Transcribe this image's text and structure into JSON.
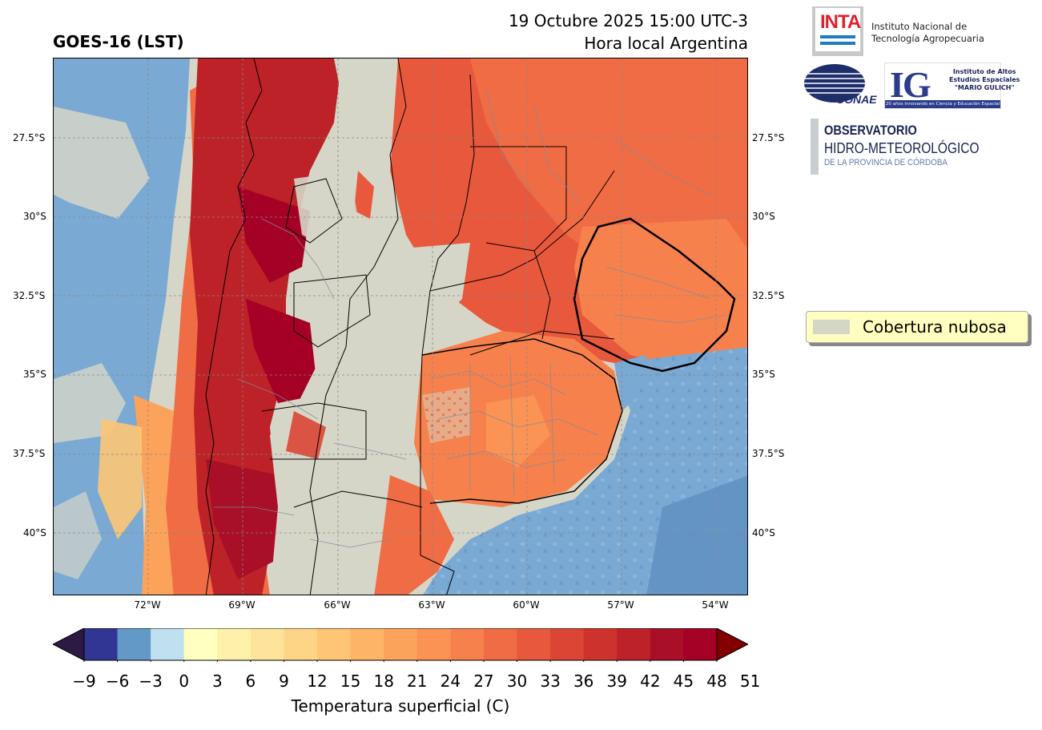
{
  "title": "GOES-16 (LST)",
  "time": {
    "line1": "19 Octubre 2025 15:00 UTC-3",
    "line2": "Hora local Argentina"
  },
  "map": {
    "lat_ticks": [
      "27.5°S",
      "30°S",
      "32.5°S",
      "35°S",
      "37.5°S",
      "40°S"
    ],
    "lon_ticks": [
      "72°W",
      "69°W",
      "66°W",
      "63°W",
      "60°W",
      "57°W",
      "54°W"
    ],
    "cloud_color": "#d6d6c8"
  },
  "colorbar": {
    "label": "Temperatura superficial (C)",
    "ticks": [
      "−9",
      "−6",
      "−3",
      "0",
      "3",
      "6",
      "9",
      "12",
      "15",
      "18",
      "21",
      "24",
      "27",
      "30",
      "33",
      "36",
      "39",
      "42",
      "45",
      "48",
      "51"
    ],
    "colors": [
      "#313695",
      "#6399c6",
      "#bfe1ef",
      "#ffffc0",
      "#fff0aa",
      "#fee49a",
      "#fed586",
      "#fdc574",
      "#fdb466",
      "#fca35b",
      "#fa9353",
      "#f6814c",
      "#f06c44",
      "#e8583c",
      "#db4534",
      "#cd332c",
      "#bc2227",
      "#a90f26",
      "#a50026"
    ],
    "under_color": "#2c1a45",
    "over_color": "#820000"
  },
  "legend": {
    "label": "Cobertura nubosa"
  },
  "logos": {
    "inta": {
      "mark": "INTA",
      "text_line1": "Instituto Nacional de",
      "text_line2": "Tecnología Agropecuaria"
    },
    "conae": {
      "mark": "CONAE"
    },
    "ig": {
      "mark": "IG",
      "line1": "Instituto de Altos",
      "line2": "Estudios Espaciales",
      "line3": "\"MARIO GULICH\"",
      "banner": "20 años innovando en Ciencia y Educación Espacial"
    },
    "observatorio": {
      "line1": "OBSERVATORIO",
      "line2": "HIDRO-METEOROLÓGICO",
      "line3": "DE LA PROVINCIA DE CÓRDOBA"
    }
  }
}
